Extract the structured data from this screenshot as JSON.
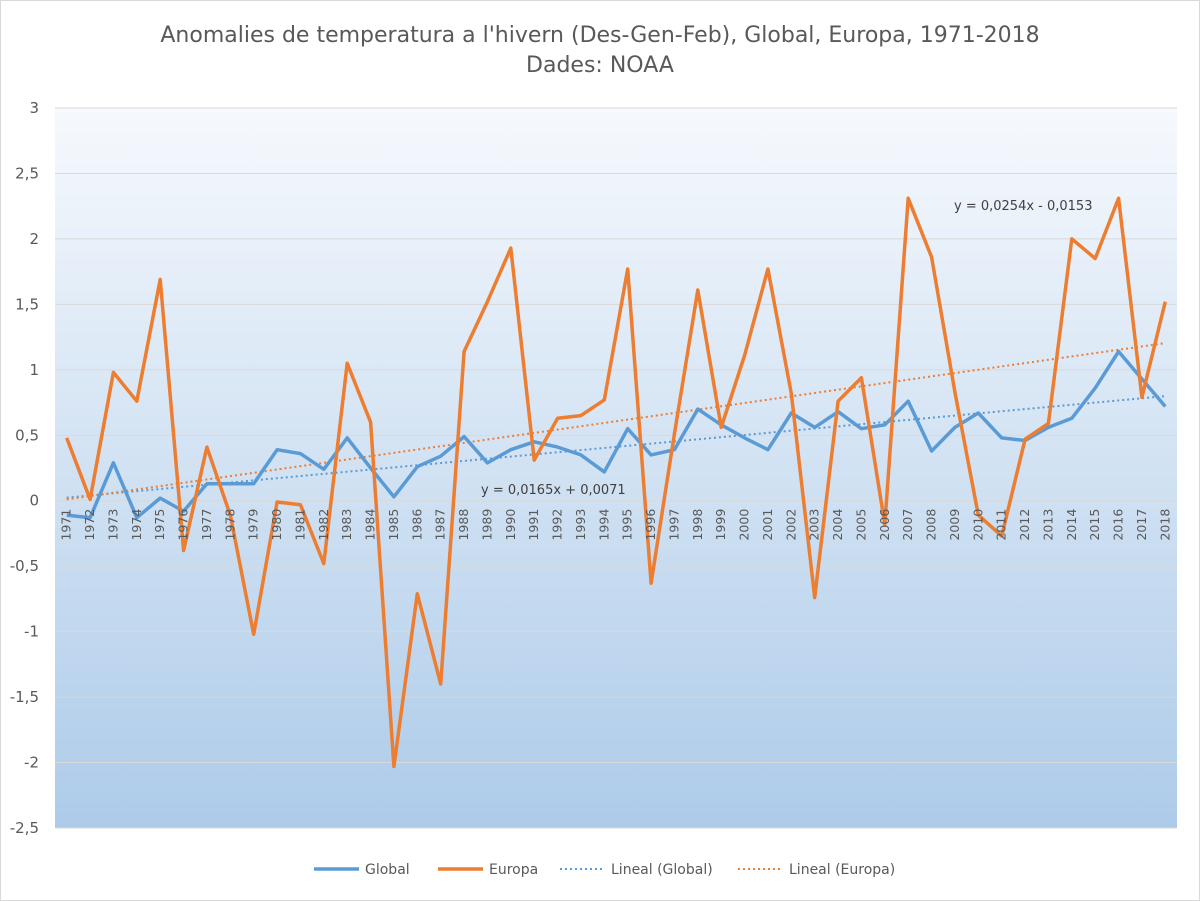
{
  "chart_data": {
    "type": "line",
    "title": "Anomalies de temperatura a l'hivern (Des-Gen-Feb), Global, Europa, 1971-2018",
    "subtitle": "Dades: NOAA",
    "xlabel": "",
    "ylabel": "",
    "ylim": [
      -2.5,
      3
    ],
    "yticks": [
      "3",
      "2,5",
      "2",
      "1,5",
      "1",
      "0,5",
      "0",
      "-0,5",
      "-1",
      "-1,5",
      "-2",
      "-2,5"
    ],
    "x": [
      "1971",
      "1972",
      "1973",
      "1974",
      "1975",
      "1976",
      "1977",
      "1978",
      "1979",
      "1980",
      "1981",
      "1982",
      "1983",
      "1984",
      "1985",
      "1986",
      "1987",
      "1988",
      "1989",
      "1990",
      "1991",
      "1992",
      "1993",
      "1994",
      "1995",
      "1996",
      "1997",
      "1998",
      "1999",
      "2000",
      "2001",
      "2002",
      "2003",
      "2004",
      "2005",
      "2006",
      "2007",
      "2008",
      "2009",
      "2010",
      "2011",
      "2012",
      "2013",
      "2014",
      "2015",
      "2016",
      "2017",
      "2018"
    ],
    "series": [
      {
        "name": "Global",
        "color": "#5b9bd5",
        "values": [
          -0.11,
          -0.13,
          0.29,
          -0.13,
          0.02,
          -0.08,
          0.13,
          0.13,
          0.13,
          0.39,
          0.36,
          0.24,
          0.48,
          0.25,
          0.03,
          0.26,
          0.34,
          0.49,
          0.29,
          0.39,
          0.45,
          0.41,
          0.35,
          0.22,
          0.55,
          0.35,
          0.39,
          0.7,
          0.58,
          0.48,
          0.39,
          0.67,
          0.56,
          0.68,
          0.55,
          0.58,
          0.76,
          0.38,
          0.56,
          0.67,
          0.48,
          0.46,
          0.56,
          0.63,
          0.86,
          1.14,
          0.93,
          0.72
        ]
      },
      {
        "name": "Europa",
        "color": "#ed7d31",
        "values": [
          0.48,
          0.01,
          0.98,
          0.76,
          1.69,
          -0.38,
          0.41,
          -0.11,
          -1.02,
          -0.01,
          -0.03,
          -0.48,
          1.05,
          0.6,
          -2.03,
          -0.71,
          -1.4,
          1.14,
          1.52,
          1.93,
          0.31,
          0.63,
          0.65,
          0.77,
          1.77,
          -0.63,
          0.51,
          1.61,
          0.56,
          1.11,
          1.77,
          0.82,
          -0.74,
          0.76,
          0.94,
          -0.18,
          2.31,
          1.86,
          0.83,
          -0.11,
          -0.27,
          0.47,
          0.59,
          2.0,
          1.85,
          2.31,
          0.79,
          1.52
        ]
      }
    ],
    "trendlines": [
      {
        "name": "Lineal  (Global)",
        "series": "Global",
        "color": "#5b9bd5",
        "slope": 0.0165,
        "intercept": 0.0071,
        "equation": "y = 0,0165x + 0,0071"
      },
      {
        "name": "Lineal  (Europa)",
        "series": "Europa",
        "color": "#ed7d31",
        "slope": 0.0254,
        "intercept": -0.0153,
        "equation": "y = 0,0254x - 0,0153"
      }
    ],
    "grid": true,
    "legend_position": "bottom"
  }
}
